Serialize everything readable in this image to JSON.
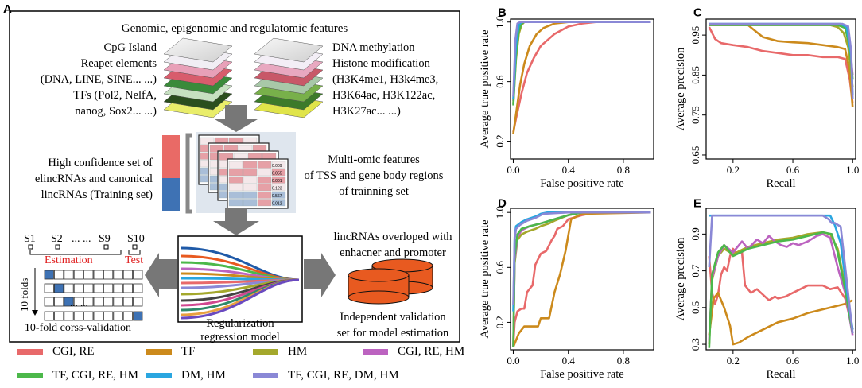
{
  "colors": {
    "CGI_RE": "#e8696a",
    "TF": "#cc8a1c",
    "HM": "#a4a82c",
    "CGI_RE_HM": "#bc63c0",
    "TF_CGI_RE_HM": "#4cb84a",
    "DM_HM": "#2aa6e0",
    "TF_CGI_RE_DM_HM": "#8a88d6",
    "training_red": "#e96a66",
    "training_blue": "#3e72b4",
    "cylinder": "#e85a20",
    "fold_blue": "#3e72b4",
    "arrow_gray": "#777777",
    "estimation_red": "#e02020"
  },
  "panelA": {
    "letter": "A",
    "top_title": "Genomic, epigenomic and regulatomic features",
    "left_features": [
      "CpG Island",
      "Reapet elements",
      "(DNA, LINE, SINE... ...)",
      "TFs (Pol2, NelfA,",
      "nanog, Sox2... ...)"
    ],
    "right_features": [
      "DNA methylation",
      "Histone modification",
      "(H3K4me1, H3k4me3,",
      "H3K64ac, H3K122ac,",
      "H3K27ac... ...)"
    ],
    "training_text": [
      "High confidence set of",
      "elincRNAs and canonical",
      "lincRNAs (Training set)"
    ],
    "multiomic_text": [
      "Multi-omic features",
      "of TSS and gene body regions",
      "of trainning set"
    ],
    "samples": [
      "S1",
      "S2",
      "... ...",
      "S9",
      "S10"
    ],
    "estimation_label": "Estimation",
    "test_label": "Test",
    "folds_label": "10 folds",
    "cv_dots": "... ...",
    "cv_label": "10-fold corss-validation",
    "model_label": [
      "Regularization",
      "regression model"
    ],
    "overlap_text": [
      "lincRNAs overloped with",
      "enhacner and promoter"
    ],
    "independent_text": [
      "Independent validation",
      "set for model estimation"
    ],
    "table_values": [
      "0.009",
      "0.055",
      "0.001",
      "0.123",
      "0.567",
      "0.012"
    ]
  },
  "legend": [
    {
      "label": "CGI, RE",
      "color_key": "CGI_RE"
    },
    {
      "label": "TF",
      "color_key": "TF"
    },
    {
      "label": "HM",
      "color_key": "HM"
    },
    {
      "label": "CGI, RE, HM",
      "color_key": "CGI_RE_HM"
    },
    {
      "label": "TF, CGI, RE, HM",
      "color_key": "TF_CGI_RE_HM"
    },
    {
      "label": "DM, HM",
      "color_key": "DM_HM"
    },
    {
      "label": "TF, CGI, RE, DM, HM",
      "color_key": "TF_CGI_RE_DM_HM"
    }
  ],
  "chart_data": [
    {
      "id": "B",
      "type": "line",
      "xlabel": "False positive rate",
      "ylabel": "Average true positive rate",
      "xlim": [
        -0.02,
        1.02
      ],
      "ylim": [
        0.08,
        1.02
      ],
      "xticks": [
        0,
        0.4,
        0.8
      ],
      "xtick_labels": [
        "0.0",
        "0.4",
        "0.8"
      ],
      "yticks": [
        0.2,
        0.6,
        1.0
      ],
      "ytick_labels": [
        "0.2",
        "0.6",
        "1.0"
      ],
      "series": [
        {
          "name": "CGI, RE",
          "color_key": "CGI_RE",
          "x": [
            0,
            0.02,
            0.06,
            0.1,
            0.15,
            0.2,
            0.3,
            0.4,
            0.5,
            0.6,
            0.8,
            1.0
          ],
          "y": [
            0.26,
            0.35,
            0.52,
            0.66,
            0.76,
            0.84,
            0.92,
            0.97,
            0.99,
            1.0,
            1.0,
            1.0
          ]
        },
        {
          "name": "TF",
          "color_key": "TF",
          "x": [
            0,
            0.02,
            0.05,
            0.08,
            0.12,
            0.17,
            0.22,
            0.3,
            0.4,
            0.6,
            1.0
          ],
          "y": [
            0.25,
            0.38,
            0.58,
            0.72,
            0.84,
            0.92,
            0.96,
            0.99,
            1.0,
            1.0,
            1.0
          ]
        },
        {
          "name": "HM",
          "color_key": "HM",
          "x": [
            0,
            0.02,
            0.04,
            0.06,
            0.08,
            0.1,
            0.2,
            1.0
          ],
          "y": [
            0.45,
            0.75,
            0.92,
            0.98,
            1.0,
            1.0,
            1.0,
            1.0
          ]
        },
        {
          "name": "CGI, RE, HM",
          "color_key": "CGI_RE_HM",
          "x": [
            0,
            0.02,
            0.04,
            0.06,
            0.08,
            1.0
          ],
          "y": [
            0.47,
            0.8,
            0.95,
            0.99,
            1.0,
            1.0
          ]
        },
        {
          "name": "TF, CGI, RE, HM",
          "color_key": "TF_CGI_RE_HM",
          "x": [
            0,
            0.02,
            0.04,
            0.06,
            0.08,
            1.0
          ],
          "y": [
            0.44,
            0.78,
            0.94,
            0.99,
            1.0,
            1.0
          ]
        },
        {
          "name": "DM, HM",
          "color_key": "DM_HM",
          "x": [
            0,
            0.02,
            0.04,
            0.06,
            1.0
          ],
          "y": [
            0.48,
            0.85,
            0.98,
            1.0,
            1.0
          ]
        },
        {
          "name": "TF, CGI, RE, DM, HM",
          "color_key": "TF_CGI_RE_DM_HM",
          "x": [
            0,
            0.015,
            0.03,
            0.05,
            1.0
          ],
          "y": [
            0.5,
            0.88,
            0.99,
            1.0,
            1.0
          ]
        }
      ]
    },
    {
      "id": "C",
      "type": "line",
      "xlabel": "Recall",
      "ylabel": "Average precision",
      "xlim": [
        0.02,
        1.02
      ],
      "ylim": [
        0.64,
        0.99
      ],
      "xticks": [
        0.2,
        0.6,
        1.0
      ],
      "xtick_labels": [
        "0.2",
        "0.6",
        "1.0"
      ],
      "yticks": [
        0.65,
        0.75,
        0.85,
        0.95
      ],
      "ytick_labels": [
        "0.65",
        "0.75",
        "0.85",
        "0.95"
      ],
      "series": [
        {
          "name": "CGI, RE",
          "color_key": "CGI_RE",
          "x": [
            0.04,
            0.08,
            0.12,
            0.2,
            0.3,
            0.4,
            0.5,
            0.6,
            0.7,
            0.8,
            0.9,
            0.95,
            0.98,
            1.0
          ],
          "y": [
            0.97,
            0.94,
            0.93,
            0.925,
            0.92,
            0.91,
            0.905,
            0.9,
            0.9,
            0.895,
            0.895,
            0.89,
            0.84,
            0.78
          ]
        },
        {
          "name": "TF",
          "color_key": "TF",
          "x": [
            0.04,
            0.1,
            0.2,
            0.3,
            0.35,
            0.4,
            0.45,
            0.5,
            0.6,
            0.7,
            0.8,
            0.9,
            0.95,
            0.98,
            1.0
          ],
          "y": [
            0.975,
            0.975,
            0.975,
            0.975,
            0.96,
            0.945,
            0.94,
            0.935,
            0.932,
            0.93,
            0.925,
            0.92,
            0.915,
            0.86,
            0.77
          ]
        },
        {
          "name": "HM",
          "color_key": "HM",
          "x": [
            0.04,
            0.5,
            0.85,
            0.9,
            0.94,
            0.97,
            1.0
          ],
          "y": [
            0.975,
            0.975,
            0.975,
            0.97,
            0.955,
            0.92,
            0.82
          ]
        },
        {
          "name": "CGI, RE, HM",
          "color_key": "CGI_RE_HM",
          "x": [
            0.04,
            0.9,
            0.95,
            0.98,
            1.0
          ],
          "y": [
            0.975,
            0.975,
            0.97,
            0.93,
            0.85
          ]
        },
        {
          "name": "TF, CGI, RE, HM",
          "color_key": "TF_CGI_RE_HM",
          "x": [
            0.04,
            0.9,
            0.95,
            0.98,
            1.0
          ],
          "y": [
            0.975,
            0.975,
            0.968,
            0.92,
            0.84
          ]
        },
        {
          "name": "DM, HM",
          "color_key": "DM_HM",
          "x": [
            0.04,
            0.92,
            0.96,
            0.99,
            1.0
          ],
          "y": [
            0.978,
            0.978,
            0.97,
            0.9,
            0.8
          ]
        },
        {
          "name": "TF, CGI, RE, DM, HM",
          "color_key": "TF_CGI_RE_DM_HM",
          "x": [
            0.04,
            0.93,
            0.97,
            0.99,
            1.0
          ],
          "y": [
            0.978,
            0.978,
            0.972,
            0.91,
            0.79
          ]
        }
      ]
    },
    {
      "id": "D",
      "type": "line",
      "xlabel": "False positive rate",
      "ylabel": "Average true positive rate",
      "xlim": [
        -0.02,
        1.02
      ],
      "ylim": [
        0.0,
        1.03
      ],
      "xticks": [
        0,
        0.4,
        0.8
      ],
      "xtick_labels": [
        "0.0",
        "0.4",
        "0.8"
      ],
      "yticks": [
        0.2,
        0.6,
        1.0
      ],
      "ytick_labels": [
        "0.2",
        "0.6",
        "1.0"
      ],
      "series": [
        {
          "name": "CGI, RE",
          "color_key": "CGI_RE",
          "x": [
            0,
            0.01,
            0.03,
            0.06,
            0.08,
            0.1,
            0.14,
            0.16,
            0.2,
            0.24,
            0.28,
            0.3,
            0.32,
            0.36,
            0.4,
            0.5,
            0.6,
            1.0
          ],
          "y": [
            0.03,
            0.2,
            0.28,
            0.3,
            0.3,
            0.42,
            0.47,
            0.62,
            0.7,
            0.72,
            0.8,
            0.83,
            0.88,
            0.9,
            0.95,
            0.98,
            1.0,
            1.0
          ]
        },
        {
          "name": "TF",
          "color_key": "TF",
          "x": [
            0,
            0.04,
            0.08,
            0.12,
            0.18,
            0.2,
            0.24,
            0.26,
            0.3,
            0.34,
            0.38,
            0.42,
            0.5,
            1.0
          ],
          "y": [
            0.02,
            0.12,
            0.17,
            0.17,
            0.17,
            0.23,
            0.23,
            0.23,
            0.42,
            0.55,
            0.72,
            0.95,
            0.99,
            1.0
          ]
        },
        {
          "name": "HM",
          "color_key": "HM",
          "x": [
            0,
            0.01,
            0.03,
            0.06,
            0.1,
            0.16,
            0.2,
            0.26,
            0.3,
            0.4,
            0.5,
            1.0
          ],
          "y": [
            0.02,
            0.63,
            0.8,
            0.84,
            0.86,
            0.88,
            0.9,
            0.92,
            0.94,
            0.98,
            1.0,
            1.0
          ]
        },
        {
          "name": "CGI, RE, HM",
          "color_key": "CGI_RE_HM",
          "x": [
            0,
            0.01,
            0.03,
            0.06,
            0.12,
            0.2,
            0.3,
            0.4,
            0.5,
            1.0
          ],
          "y": [
            0.02,
            0.65,
            0.82,
            0.87,
            0.9,
            0.92,
            0.95,
            0.98,
            1.0,
            1.0
          ]
        },
        {
          "name": "TF, CGI, RE, HM",
          "color_key": "TF_CGI_RE_HM",
          "x": [
            0,
            0.01,
            0.03,
            0.06,
            0.12,
            0.2,
            0.3,
            0.4,
            0.5,
            1.0
          ],
          "y": [
            0.02,
            0.68,
            0.84,
            0.88,
            0.9,
            0.92,
            0.95,
            0.98,
            1.0,
            1.0
          ]
        },
        {
          "name": "DM, HM",
          "color_key": "DM_HM",
          "x": [
            0,
            0.01,
            0.02,
            0.06,
            0.1,
            0.16,
            0.2,
            0.25,
            0.4,
            1.0
          ],
          "y": [
            0.28,
            0.82,
            0.9,
            0.93,
            0.95,
            0.97,
            0.99,
            1.0,
            1.0,
            1.0
          ]
        },
        {
          "name": "TF, CGI, RE, DM, HM",
          "color_key": "TF_CGI_RE_DM_HM",
          "x": [
            0,
            0.01,
            0.02,
            0.05,
            0.1,
            0.16,
            0.22,
            0.4,
            1.0
          ],
          "y": [
            0.33,
            0.8,
            0.88,
            0.91,
            0.94,
            0.96,
            0.99,
            1.0,
            1.0
          ]
        }
      ]
    },
    {
      "id": "E",
      "type": "line",
      "xlabel": "Recall",
      "ylabel": "Average precision",
      "xlim": [
        0.02,
        1.02
      ],
      "ylim": [
        0.27,
        1.04
      ],
      "xticks": [
        0.2,
        0.6,
        1.0
      ],
      "xtick_labels": [
        "0.2",
        "0.6",
        "1.0"
      ],
      "yticks": [
        0.3,
        0.5,
        0.7,
        0.9
      ],
      "ytick_labels": [
        "0.3",
        "0.5",
        "0.7",
        "0.9"
      ],
      "series": [
        {
          "name": "CGI, RE",
          "color_key": "CGI_RE",
          "x": [
            0.04,
            0.06,
            0.08,
            0.1,
            0.12,
            0.14,
            0.16,
            0.18,
            0.2,
            0.22,
            0.26,
            0.28,
            0.32,
            0.36,
            0.4,
            0.44,
            0.48,
            0.5,
            0.55,
            0.6,
            0.65,
            0.7,
            0.75,
            0.8,
            0.85,
            0.9,
            0.95,
            1.0
          ],
          "y": [
            0.78,
            0.58,
            0.52,
            0.57,
            0.68,
            0.72,
            0.7,
            0.78,
            0.82,
            0.8,
            0.8,
            0.62,
            0.58,
            0.6,
            0.57,
            0.54,
            0.56,
            0.55,
            0.56,
            0.58,
            0.6,
            0.62,
            0.62,
            0.62,
            0.6,
            0.61,
            0.55,
            0.38
          ]
        },
        {
          "name": "TF",
          "color_key": "TF",
          "x": [
            0.04,
            0.07,
            0.1,
            0.14,
            0.18,
            0.2,
            0.24,
            0.3,
            0.4,
            0.5,
            0.6,
            0.7,
            0.8,
            0.9,
            0.95,
            1.0
          ],
          "y": [
            0.35,
            0.55,
            0.58,
            0.5,
            0.4,
            0.3,
            0.31,
            0.34,
            0.38,
            0.42,
            0.44,
            0.47,
            0.49,
            0.51,
            0.52,
            0.54
          ]
        },
        {
          "name": "HM",
          "color_key": "HM",
          "x": [
            0.04,
            0.06,
            0.1,
            0.14,
            0.2,
            0.3,
            0.4,
            0.5,
            0.6,
            0.7,
            0.8,
            0.85,
            0.9,
            0.95,
            1.0
          ],
          "y": [
            0.3,
            0.65,
            0.78,
            0.82,
            0.79,
            0.83,
            0.85,
            0.87,
            0.88,
            0.9,
            0.91,
            0.9,
            0.82,
            0.62,
            0.38
          ]
        },
        {
          "name": "CGI, RE, HM",
          "color_key": "CGI_RE_HM",
          "x": [
            0.04,
            0.06,
            0.1,
            0.14,
            0.2,
            0.26,
            0.3,
            0.36,
            0.4,
            0.44,
            0.48,
            0.52,
            0.56,
            0.6,
            0.64,
            0.7,
            0.76,
            0.8,
            0.85,
            0.9,
            0.95,
            1.0
          ],
          "y": [
            0.32,
            0.66,
            0.78,
            0.84,
            0.8,
            0.86,
            0.82,
            0.87,
            0.85,
            0.89,
            0.86,
            0.84,
            0.83,
            0.85,
            0.84,
            0.86,
            0.89,
            0.9,
            0.88,
            0.72,
            0.58,
            0.35
          ]
        },
        {
          "name": "TF, CGI, RE, HM",
          "color_key": "TF_CGI_RE_HM",
          "x": [
            0.04,
            0.06,
            0.1,
            0.14,
            0.2,
            0.3,
            0.4,
            0.5,
            0.6,
            0.7,
            0.8,
            0.86,
            0.9,
            0.95,
            1.0
          ],
          "y": [
            0.28,
            0.68,
            0.8,
            0.84,
            0.78,
            0.82,
            0.84,
            0.86,
            0.87,
            0.89,
            0.91,
            0.9,
            0.8,
            0.6,
            0.36
          ]
        },
        {
          "name": "DM, HM",
          "color_key": "DM_HM",
          "x": [
            0.04,
            0.2,
            0.4,
            0.6,
            0.8,
            0.85,
            0.88,
            0.92,
            0.96,
            1.0
          ],
          "y": [
            1.0,
            1.0,
            1.0,
            1.0,
            1.0,
            1.0,
            0.95,
            0.85,
            0.6,
            0.38
          ]
        },
        {
          "name": "TF, CGI, RE, DM, HM",
          "color_key": "TF_CGI_RE_DM_HM",
          "x": [
            0.04,
            0.06,
            0.2,
            0.5,
            0.8,
            0.84,
            0.86,
            0.88,
            0.92,
            0.96,
            1.0
          ],
          "y": [
            0.72,
            1.0,
            1.0,
            1.0,
            1.0,
            0.98,
            0.96,
            0.96,
            0.94,
            0.65,
            0.36
          ]
        }
      ]
    }
  ]
}
